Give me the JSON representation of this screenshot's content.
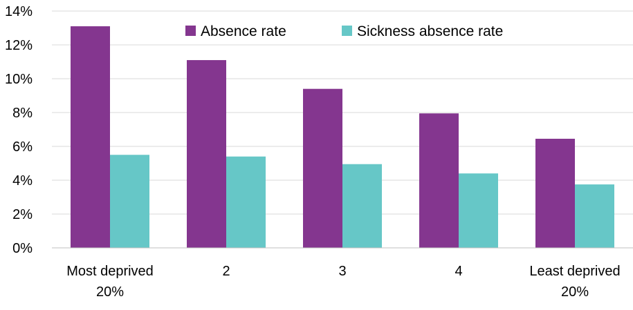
{
  "chart_data": {
    "type": "bar",
    "categories": [
      [
        "Most deprived",
        "20%"
      ],
      [
        "2"
      ],
      [
        "3"
      ],
      [
        "4"
      ],
      [
        "Least deprived",
        "20%"
      ]
    ],
    "series": [
      {
        "name": "Absence rate",
        "color": "#84368f",
        "values": [
          13.1,
          11.1,
          9.4,
          7.95,
          6.45
        ]
      },
      {
        "name": "Sickness absence rate",
        "color": "#66c7c7",
        "values": [
          5.5,
          5.4,
          4.95,
          4.4,
          3.75
        ]
      }
    ],
    "ylim": [
      0,
      14
    ],
    "y_ticks": [
      "0%",
      "2%",
      "4%",
      "6%",
      "8%",
      "10%",
      "12%",
      "14%"
    ],
    "y_tick_values": [
      0,
      2,
      4,
      6,
      8,
      10,
      12,
      14
    ],
    "grid": true,
    "legend_position": "top-center",
    "title": "",
    "xlabel": "",
    "ylabel": ""
  }
}
